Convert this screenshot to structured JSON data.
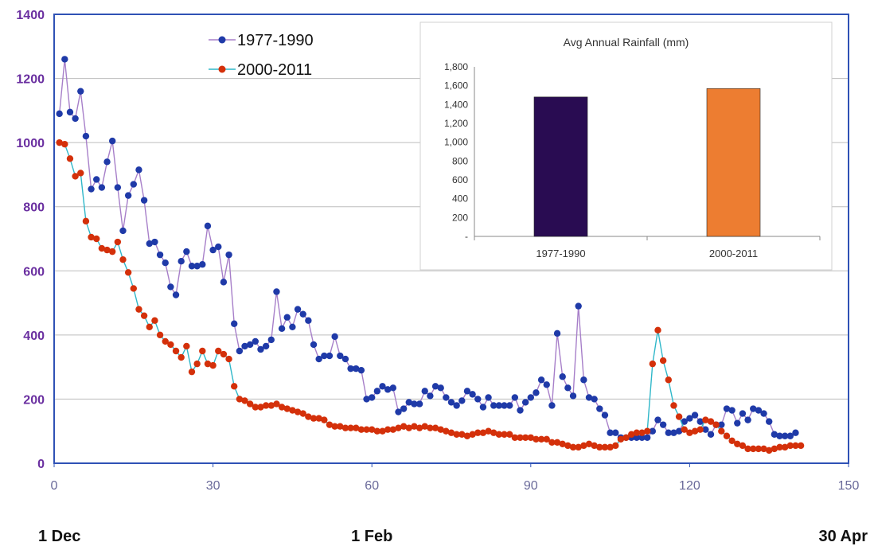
{
  "chart_data": [
    {
      "type": "line",
      "xlim": [
        0,
        150
      ],
      "ylim": [
        0,
        1400
      ],
      "x_ticks": [
        "0",
        "30",
        "60",
        "90",
        "120",
        "150"
      ],
      "y_ticks": [
        "0",
        "200",
        "400",
        "600",
        "800",
        "1000",
        "1200",
        "1400"
      ],
      "day_labels": [
        {
          "text": "1 Dec",
          "x": 0
        },
        {
          "text": "1 Feb",
          "x": 60
        },
        {
          "text": "30 Apr",
          "x": 150
        }
      ],
      "grid": true,
      "legend": "top-left",
      "series": [
        {
          "name": "1977-1990",
          "color": "#1f3aa8",
          "line_color": "#a77fc9",
          "x_start": 1,
          "values": [
            1090,
            1260,
            1095,
            1075,
            1160,
            1020,
            855,
            885,
            860,
            940,
            1005,
            860,
            725,
            835,
            870,
            915,
            820,
            685,
            690,
            650,
            625,
            550,
            525,
            630,
            660,
            615,
            615,
            620,
            740,
            665,
            675,
            565,
            650,
            435,
            350,
            365,
            370,
            380,
            355,
            365,
            385,
            535,
            420,
            455,
            425,
            480,
            465,
            445,
            370,
            325,
            335,
            335,
            395,
            335,
            325,
            295,
            295,
            290,
            200,
            205,
            225,
            240,
            230,
            235,
            160,
            170,
            190,
            185,
            185,
            225,
            210,
            240,
            235,
            205,
            190,
            180,
            195,
            225,
            215,
            200,
            175,
            205,
            180,
            180,
            180,
            180,
            205,
            165,
            190,
            205,
            220,
            260,
            245,
            180,
            405,
            270,
            235,
            210,
            490,
            260,
            205,
            200,
            170,
            150,
            95,
            95,
            80,
            80,
            80,
            80,
            80,
            80,
            100,
            135,
            120,
            95,
            95,
            100,
            130,
            140,
            150,
            130,
            105,
            90,
            120,
            120,
            170,
            165,
            125,
            155,
            135,
            170,
            165,
            155,
            130,
            90,
            85,
            85,
            85,
            95
          ]
        },
        {
          "name": "2000-2011",
          "color": "#d4300a",
          "line_color": "#2fb7c9",
          "x_start": 1,
          "values": [
            1000,
            995,
            950,
            895,
            905,
            755,
            705,
            700,
            670,
            665,
            660,
            690,
            635,
            595,
            545,
            480,
            460,
            425,
            445,
            400,
            380,
            370,
            350,
            330,
            365,
            285,
            310,
            350,
            310,
            305,
            350,
            340,
            325,
            240,
            200,
            195,
            185,
            175,
            175,
            180,
            180,
            185,
            175,
            170,
            165,
            160,
            155,
            145,
            140,
            140,
            135,
            120,
            115,
            115,
            110,
            110,
            110,
            105,
            105,
            105,
            100,
            100,
            105,
            105,
            110,
            115,
            110,
            115,
            110,
            115,
            110,
            110,
            105,
            100,
            95,
            90,
            90,
            85,
            90,
            95,
            95,
            100,
            95,
            90,
            90,
            90,
            80,
            80,
            80,
            80,
            75,
            75,
            75,
            65,
            65,
            60,
            55,
            50,
            50,
            55,
            60,
            55,
            50,
            50,
            50,
            55,
            75,
            80,
            90,
            95,
            95,
            100,
            310,
            415,
            320,
            260,
            180,
            145,
            105,
            95,
            100,
            105,
            135,
            130,
            120,
            100,
            85,
            70,
            60,
            55,
            45,
            45,
            45,
            45,
            40,
            45,
            50,
            50,
            55,
            55,
            55
          ]
        }
      ]
    },
    {
      "type": "bar",
      "title": "Avg Annual Rainfall (mm)",
      "categories": [
        "1977-1990",
        "2000-2011"
      ],
      "values": [
        1480,
        1570
      ],
      "colors": [
        "#290c52",
        "#ed7d31"
      ],
      "ylim": [
        0,
        1800
      ],
      "y_ticks": [
        "-",
        "200",
        "400",
        "600",
        "800",
        "1,000",
        "1,200",
        "1,400",
        "1,600",
        "1,800"
      ]
    }
  ]
}
